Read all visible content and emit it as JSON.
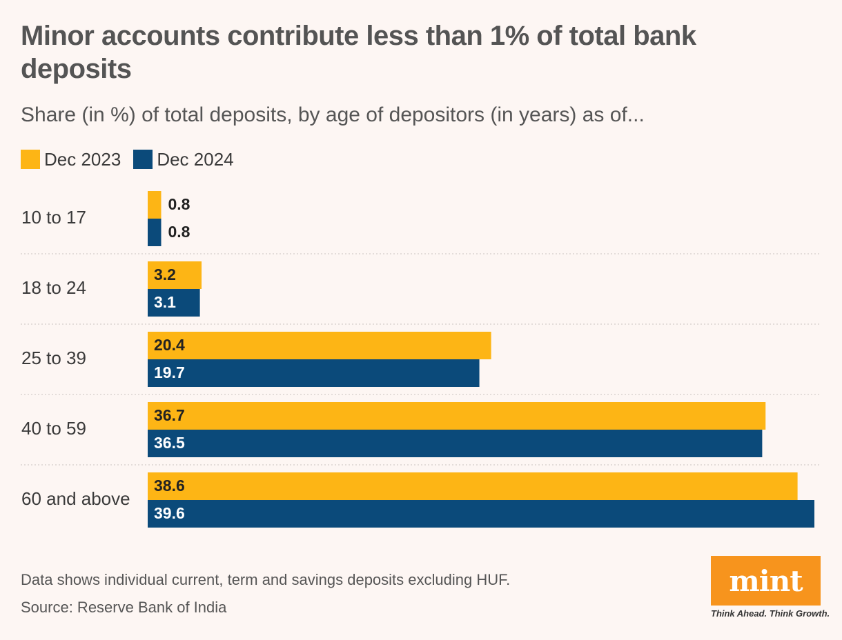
{
  "chart_data": {
    "type": "bar",
    "orientation": "horizontal",
    "title": "Minor accounts contribute less than 1% of total bank deposits",
    "subtitle": "Share (in %) of total deposits, by age of depositors (in years) as of...",
    "categories": [
      "10 to 17",
      "18 to 24",
      "25 to 39",
      "40 to 59",
      "60 and above"
    ],
    "series": [
      {
        "name": "Dec 2023",
        "color": "#fdb515",
        "values": [
          0.8,
          3.2,
          20.4,
          36.7,
          38.6
        ]
      },
      {
        "name": "Dec 2024",
        "color": "#0b4a7a",
        "values": [
          0.8,
          3.1,
          19.7,
          36.5,
          39.6
        ]
      }
    ],
    "xlim": [
      0,
      39.6
    ],
    "grid": false,
    "legend": "top-left",
    "footnote": "Data shows individual current, term and savings deposits excluding HUF.",
    "source": "Source: Reserve Bank of India"
  },
  "branding": {
    "logo_text": "mint",
    "tagline": "Think Ahead. Think Growth.",
    "logo_color": "#f7941d"
  }
}
